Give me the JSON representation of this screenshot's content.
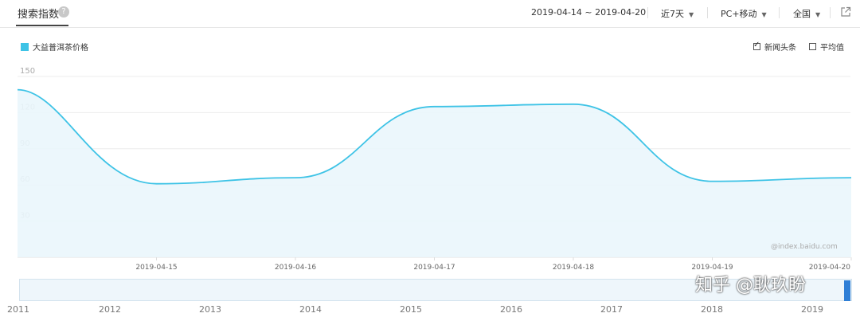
{
  "header": {
    "title": "搜索指数",
    "help_label": "?",
    "date_range": "2019-04-14 ~ 2019-04-20",
    "period": "近7天",
    "device": "PC+移动",
    "region": "全国"
  },
  "options": {
    "news_label": "新闻头条",
    "news_checked": true,
    "average_label": "平均值",
    "average_checked": false
  },
  "watermark": "@index.baidu.com",
  "overlay_watermark": "知乎 @耿玖盼",
  "colors": {
    "line": "#3ec3e6",
    "fill": "#eaf6fc",
    "brush_handle": "#2f7fd6"
  },
  "chart_data": {
    "type": "area",
    "legend": [
      "大益普洱茶价格"
    ],
    "x_ticks": [
      "2019-04-15",
      "2019-04-16",
      "2019-04-17",
      "2019-04-18",
      "2019-04-19",
      "2019-04-20"
    ],
    "y_ticks": [
      "30",
      "60",
      "90",
      "120",
      "150"
    ],
    "ylim": [
      0,
      150
    ],
    "grid": true,
    "series": [
      {
        "name": "大益普洱茶价格",
        "points": [
          {
            "x": "2019-04-14",
            "y": 139
          },
          {
            "x": "2019-04-15",
            "y": 61
          },
          {
            "x": "2019-04-16",
            "y": 66
          },
          {
            "x": "2019-04-17",
            "y": 125
          },
          {
            "x": "2019-04-18",
            "y": 127
          },
          {
            "x": "2019-04-19",
            "y": 63
          },
          {
            "x": "2019-04-20",
            "y": 66
          }
        ]
      }
    ],
    "overview_years": [
      "2011",
      "2012",
      "2013",
      "2014",
      "2015",
      "2016",
      "2017",
      "2018",
      "2019"
    ]
  }
}
